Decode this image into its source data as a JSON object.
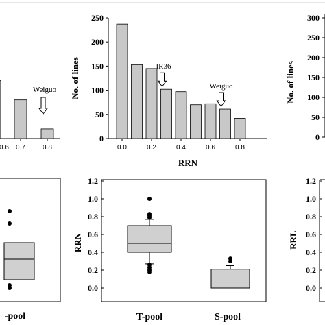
{
  "chart_data": [
    {
      "type": "bar",
      "categories": [
        "0.6",
        "0.7",
        "0.8"
      ],
      "values": [
        120,
        80,
        20
      ],
      "tick_labels": [
        "0.6",
        "0.7",
        "0.8"
      ],
      "annotations": [
        {
          "text": "Weiguo",
          "x": "0.8"
        }
      ],
      "colors": {
        "bar": "#c8c8c8"
      }
    },
    {
      "type": "bar",
      "categories": [
        "0.0",
        "0.1",
        "0.2",
        "0.3",
        "0.4",
        "0.5",
        "0.6",
        "0.7",
        "0.8"
      ],
      "values": [
        237,
        153,
        145,
        102,
        97,
        70,
        72,
        61,
        42
      ],
      "xlabel": "RRN",
      "ylabel": "No. of lines",
      "ylim": [
        0,
        250
      ],
      "yticks": [
        "0",
        "50",
        "100",
        "150",
        "200",
        "250"
      ],
      "xticks": [
        "0.0",
        "0.2",
        "0.4",
        "0.6",
        "0.8"
      ],
      "annotations": [
        {
          "text": "IR36",
          "x": "0.3"
        },
        {
          "text": "Weiguo",
          "x": "0.7"
        }
      ],
      "colors": {
        "bar": "#c8c8c8"
      }
    },
    {
      "type": "bar",
      "ylabel": "No. of lines",
      "ylim": [
        0,
        300
      ],
      "yticks": [
        "0",
        "50",
        "100",
        "150",
        "200",
        "250",
        "300"
      ]
    },
    {
      "type": "box",
      "categories": [
        "-pool"
      ],
      "boxes": [
        {
          "q1": 0.06,
          "median": 0.21,
          "q3": 0.33,
          "outliers": [
            0.0,
            0.02,
            0.47,
            0.56
          ]
        }
      ]
    },
    {
      "type": "box",
      "categories": [
        "T-pool",
        "S-pool"
      ],
      "ylabel": "RRN",
      "ylim": [
        0,
        1.2
      ],
      "yticks": [
        "0.0",
        "0.2",
        "0.4",
        "0.6",
        "0.8",
        "1.0",
        "1.2"
      ],
      "boxes": [
        {
          "whisker_low": 0.27,
          "q1": 0.4,
          "median": 0.5,
          "q3": 0.7,
          "whisker_high": 0.77,
          "outliers": [
            0.18,
            0.2,
            0.23,
            0.26,
            0.79,
            0.81,
            0.83,
            1.0
          ]
        },
        {
          "whisker_low": 0.0,
          "q1": 0.0,
          "median": 0.0,
          "q3": 0.21,
          "whisker_high": 0.25,
          "outliers": [
            0.3,
            0.33
          ]
        }
      ],
      "colors": {
        "box": "#d0d0d0"
      }
    },
    {
      "type": "box",
      "ylabel": "RRL",
      "ylim": [
        0,
        1.2
      ],
      "yticks": [
        "0.0",
        "0.2",
        "0.4",
        "0.6",
        "0.8",
        "1.0",
        "1.2"
      ]
    }
  ]
}
